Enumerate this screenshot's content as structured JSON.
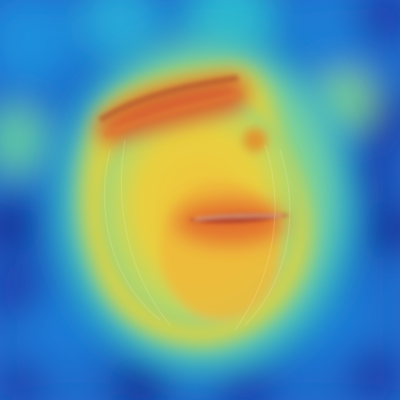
{
  "image": {
    "subject": "attention-heatmap-overlay",
    "colormap": "jet",
    "colors": {
      "low": "#12309a",
      "low_mid": "#1f79d6",
      "mid": "#2cc4c6",
      "mid_high": "#a9d86a",
      "high": "#f0d23a",
      "peak": "#d9612e",
      "object_shadow": "#c88b2a"
    }
  }
}
